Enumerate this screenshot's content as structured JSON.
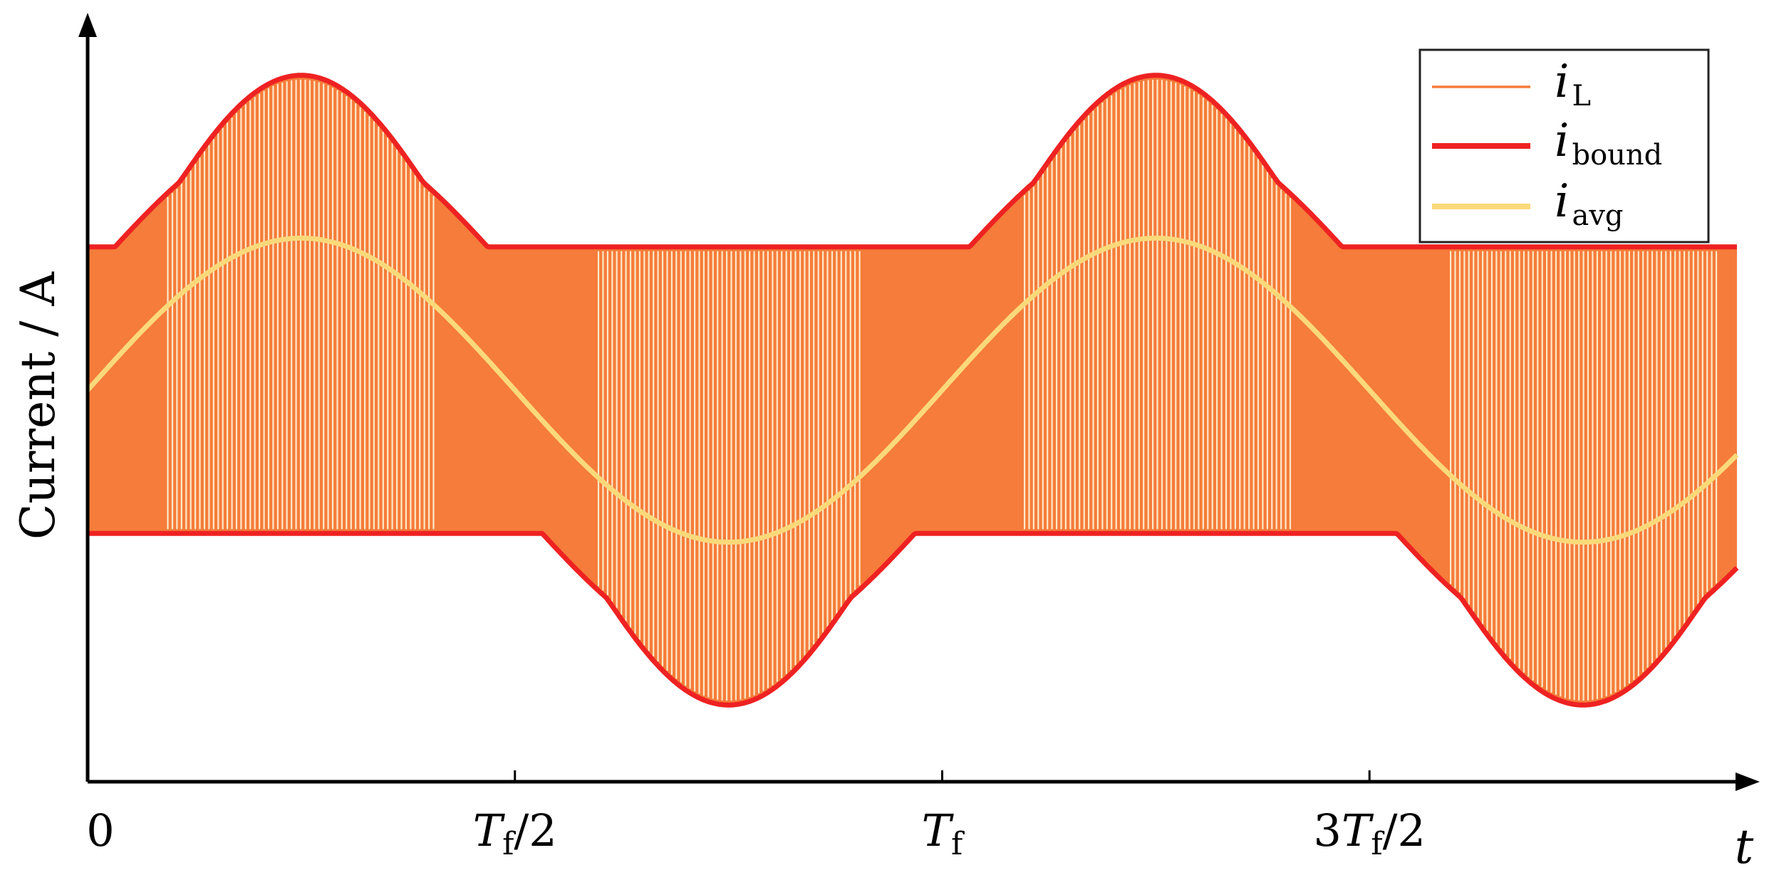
{
  "chart_data": {
    "type": "line",
    "title": "",
    "xlabel": "t",
    "ylabel": "Current / A",
    "x_ticks": [
      {
        "value": 0,
        "label": "0",
        "parts": [
          {
            "t": "0"
          }
        ]
      },
      {
        "value": 0.5,
        "label": "Tf/2",
        "parts": [
          {
            "t": "T",
            "i": true
          },
          {
            "t": "f",
            "sub": true
          },
          {
            "t": "/2"
          }
        ]
      },
      {
        "value": 1.0,
        "label": "Tf",
        "parts": [
          {
            "t": "T",
            "i": true
          },
          {
            "t": "f",
            "sub": true
          }
        ]
      },
      {
        "value": 1.5,
        "label": "3Tf/2",
        "parts": [
          {
            "t": "3"
          },
          {
            "t": "T",
            "i": true
          },
          {
            "t": "f",
            "sub": true
          },
          {
            "t": "/2"
          }
        ]
      }
    ],
    "xlim": [
      0,
      1.95
    ],
    "ylim": [
      -1.6,
      1.6
    ],
    "grid": false,
    "legend_position": "top-right",
    "series": [
      {
        "name": "iL",
        "legend_main": "i",
        "legend_sub": "L",
        "color": "#F57C3A",
        "style": "switching ripple band"
      },
      {
        "name": "ibound",
        "legend_main": "i",
        "legend_sub": "bound",
        "color": "#EE2222",
        "style": "upper and lower envelope"
      },
      {
        "name": "iavg",
        "legend_main": "i",
        "legend_sub": "avg",
        "color": "#FBD97A",
        "style": "sinusoid"
      }
    ],
    "model": {
      "avg_amplitude": 0.7,
      "avg_phase_period": 1.0,
      "avg_offset": 0.0,
      "band_half_width_base": 0.52,
      "clamp_upper_at": 0.0,
      "clamp_lower_at": 0.0,
      "peak_upper": 1.45,
      "trough_lower": -1.45,
      "x_sample_end": 1.93
    }
  }
}
